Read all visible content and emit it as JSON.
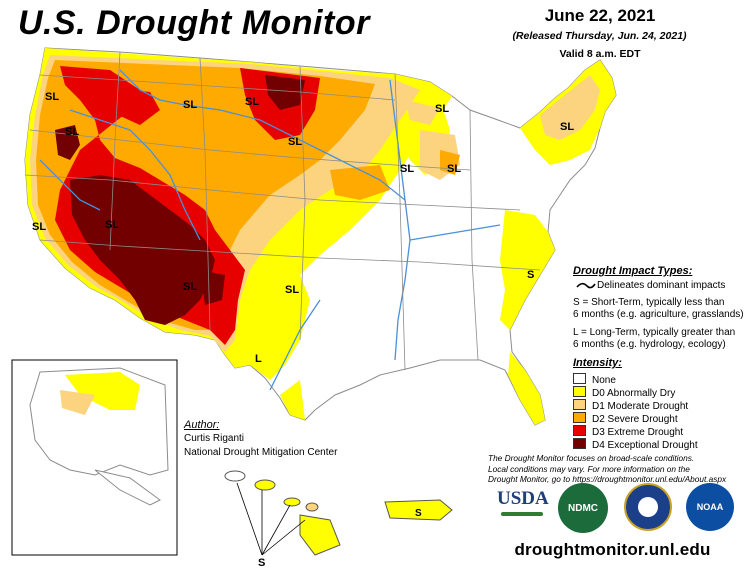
{
  "header": {
    "title": "U.S. Drought Monitor",
    "date": "June 22, 2021",
    "released": "(Released Thursday, Jun. 24, 2021)",
    "valid": "Valid 8 a.m. EDT"
  },
  "map_labels": {
    "sl": "SL",
    "s": "S",
    "l": "L"
  },
  "impact_legend": {
    "title": "Drought Impact Types:",
    "dominant": "Delineates dominant impacts",
    "short_line1": "S = Short-Term, typically less than",
    "short_line2": "6 months (e.g. agriculture, grasslands)",
    "long_line1": "L = Long-Term, typically greater than",
    "long_line2": "6 months (e.g. hydrology, ecology)"
  },
  "intensity_legend": {
    "title": "Intensity:",
    "items": [
      {
        "label": "None",
        "color": "#ffffff"
      },
      {
        "label": "D0 Abnormally Dry",
        "color": "#ffff00"
      },
      {
        "label": "D1 Moderate Drought",
        "color": "#fcd37f"
      },
      {
        "label": "D2 Severe Drought",
        "color": "#ffaa00"
      },
      {
        "label": "D3 Extreme Drought",
        "color": "#e60000"
      },
      {
        "label": "D4 Exceptional Drought",
        "color": "#730000"
      }
    ]
  },
  "author": {
    "heading": "Author:",
    "name": "Curtis Riganti",
    "org": "National Drought Mitigation Center"
  },
  "disclaimer": {
    "line1": "The Drought Monitor focuses on broad-scale conditions.",
    "line2": "Local conditions may vary. For more information on the",
    "line3": "Drought Monitor, go to https://droughtmonitor.unl.edu/About.aspx"
  },
  "logos": {
    "usda": "USDA",
    "ndmc": "NDMC",
    "noaa": "NOAA"
  },
  "footer": {
    "site": "droughtmonitor.unl.edu"
  },
  "colors": {
    "river": "#4a90d9",
    "state_border": "#8c8c8c",
    "frame": "#000000"
  }
}
